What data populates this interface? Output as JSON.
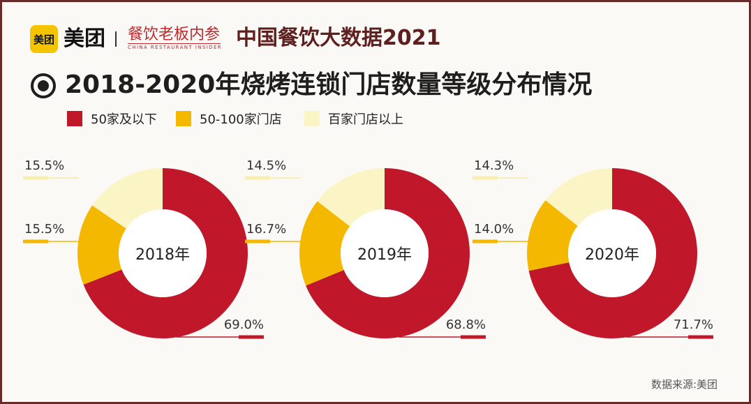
{
  "header": {
    "logo_text": "美团",
    "brand_name": "美团",
    "partner_title": "餐饮老板内参",
    "partner_subtitle": "CHINA RESTAURANT INSIDER",
    "title": "中国餐饮大数据2021"
  },
  "chart_title": "2018-2020年烧烤连锁门店数量等级分布情况",
  "legend": [
    {
      "label": "50家及以下",
      "color": "#c0182a"
    },
    {
      "label": "50-100家门店",
      "color": "#f5b800"
    },
    {
      "label": "百家门店以上",
      "color": "#fbf5c5"
    }
  ],
  "chart_data": [
    {
      "type": "pie",
      "variant": "donut",
      "center_label": "2018年",
      "categories": [
        "50家及以下",
        "50-100家门店",
        "百家门店以上"
      ],
      "values": [
        69.0,
        15.5,
        15.5
      ],
      "value_labels": [
        "69.0%",
        "15.5%",
        "15.5%"
      ],
      "colors": [
        "#c0182a",
        "#f5b800",
        "#fbf5c5"
      ]
    },
    {
      "type": "pie",
      "variant": "donut",
      "center_label": "2019年",
      "categories": [
        "50家及以下",
        "50-100家门店",
        "百家门店以上"
      ],
      "values": [
        68.8,
        16.7,
        14.5
      ],
      "value_labels": [
        "68.8%",
        "16.7%",
        "14.5%"
      ],
      "colors": [
        "#c0182a",
        "#f5b800",
        "#fbf5c5"
      ]
    },
    {
      "type": "pie",
      "variant": "donut",
      "center_label": "2020年",
      "categories": [
        "50家及以下",
        "50-100家门店",
        "百家门店以上"
      ],
      "values": [
        71.7,
        14.0,
        14.3
      ],
      "value_labels": [
        "71.7%",
        "14.0%",
        "14.3%"
      ],
      "colors": [
        "#c0182a",
        "#f5b800",
        "#fbf5c5"
      ]
    }
  ],
  "source": "数据来源:美团"
}
